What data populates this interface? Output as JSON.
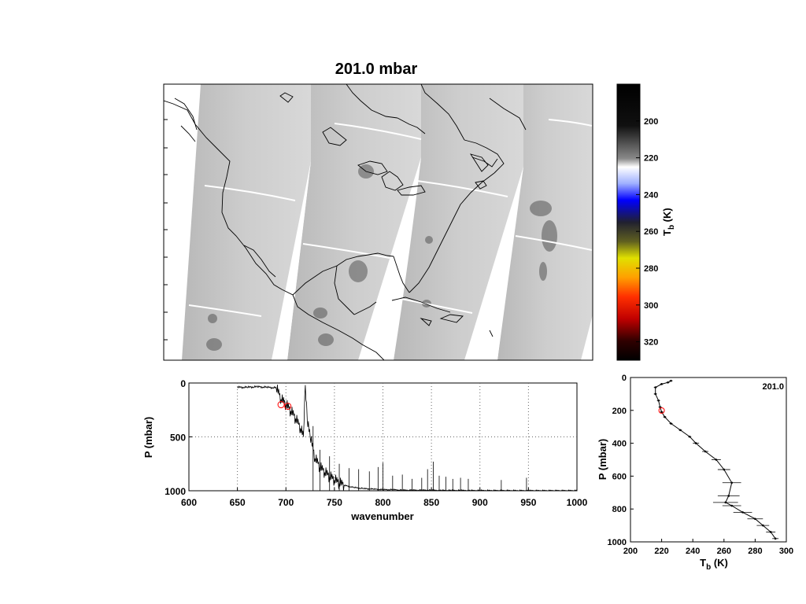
{
  "title": "201.0 mbar",
  "colorbar": {
    "label_main": "T",
    "label_sub": "b",
    "label_unit": "(K)",
    "ticks": [
      "200",
      "220",
      "240",
      "260",
      "280",
      "300",
      "320"
    ],
    "range": [
      180,
      330
    ]
  },
  "chart_data": [
    {
      "type": "line",
      "panel": "spectrum",
      "xlabel": "wavenumber",
      "ylabel": "P (mbar)",
      "xlim": [
        600,
        1000
      ],
      "ylim": [
        0,
        1000
      ],
      "y_reversed": true,
      "x_ticks": [
        "600",
        "650",
        "700",
        "750",
        "800",
        "850",
        "900",
        "950",
        "1000"
      ],
      "y_ticks": [
        "0",
        "500",
        "1000"
      ],
      "grid": true,
      "highlight": {
        "x": 698,
        "y": 201,
        "color": "#ff0000"
      },
      "series": [
        {
          "x": [
            650,
            660,
            670,
            680,
            690,
            695,
            700,
            705,
            710,
            715,
            718,
            720,
            722,
            725,
            730,
            735,
            740,
            745,
            750,
            755,
            760,
            770,
            780,
            790,
            800,
            810,
            820,
            830,
            840,
            850,
            860,
            870,
            880,
            890,
            900,
            920,
            950,
            1000
          ],
          "y": [
            40,
            40,
            35,
            40,
            45,
            150,
            200,
            260,
            330,
            420,
            500,
            20,
            350,
            500,
            700,
            780,
            830,
            870,
            900,
            930,
            950,
            970,
            980,
            985,
            990,
            990,
            995,
            995,
            995,
            995,
            997,
            997,
            997,
            998,
            998,
            998,
            999,
            999
          ]
        }
      ],
      "spikes": [
        {
          "x": 728,
          "y": 400
        },
        {
          "x": 735,
          "y": 620
        },
        {
          "x": 745,
          "y": 680
        },
        {
          "x": 755,
          "y": 750
        },
        {
          "x": 765,
          "y": 790
        },
        {
          "x": 775,
          "y": 800
        },
        {
          "x": 786,
          "y": 820
        },
        {
          "x": 795,
          "y": 780
        },
        {
          "x": 800,
          "y": 740
        },
        {
          "x": 810,
          "y": 860
        },
        {
          "x": 820,
          "y": 850
        },
        {
          "x": 830,
          "y": 890
        },
        {
          "x": 840,
          "y": 880
        },
        {
          "x": 846,
          "y": 800
        },
        {
          "x": 852,
          "y": 730
        },
        {
          "x": 858,
          "y": 860
        },
        {
          "x": 865,
          "y": 870
        },
        {
          "x": 872,
          "y": 890
        },
        {
          "x": 880,
          "y": 880
        },
        {
          "x": 888,
          "y": 890
        },
        {
          "x": 922,
          "y": 900
        },
        {
          "x": 948,
          "y": 880
        }
      ]
    },
    {
      "type": "line",
      "panel": "profile",
      "xlabel_main": "T",
      "xlabel_sub": "b",
      "xlabel_unit": "(K)",
      "ylabel": "P (mbar)",
      "xlim": [
        200,
        300
      ],
      "ylim": [
        0,
        1000
      ],
      "y_reversed": true,
      "x_ticks": [
        "200",
        "220",
        "240",
        "260",
        "280",
        "300"
      ],
      "y_ticks": [
        "0",
        "200",
        "400",
        "600",
        "800",
        "1000"
      ],
      "annotation": "201.0",
      "highlight": {
        "x": 220,
        "y": 201,
        "color": "#ff0000"
      },
      "series": [
        {
          "x": [
            226,
            224,
            220,
            216,
            216,
            218,
            219,
            220,
            222,
            226,
            232,
            238,
            242,
            248,
            255,
            260,
            265,
            263,
            261,
            265,
            272,
            280,
            285,
            290,
            293
          ],
          "y": [
            20,
            30,
            40,
            60,
            100,
            140,
            180,
            210,
            240,
            280,
            320,
            360,
            400,
            450,
            500,
            560,
            640,
            720,
            760,
            780,
            820,
            860,
            900,
            940,
            980
          ]
        }
      ],
      "error_half_widths": [
        1,
        1,
        1,
        1,
        1,
        1,
        1,
        1,
        1,
        1,
        1,
        1,
        2,
        2,
        3,
        4,
        6,
        7,
        8,
        6,
        6,
        5,
        4,
        3,
        2
      ]
    }
  ]
}
